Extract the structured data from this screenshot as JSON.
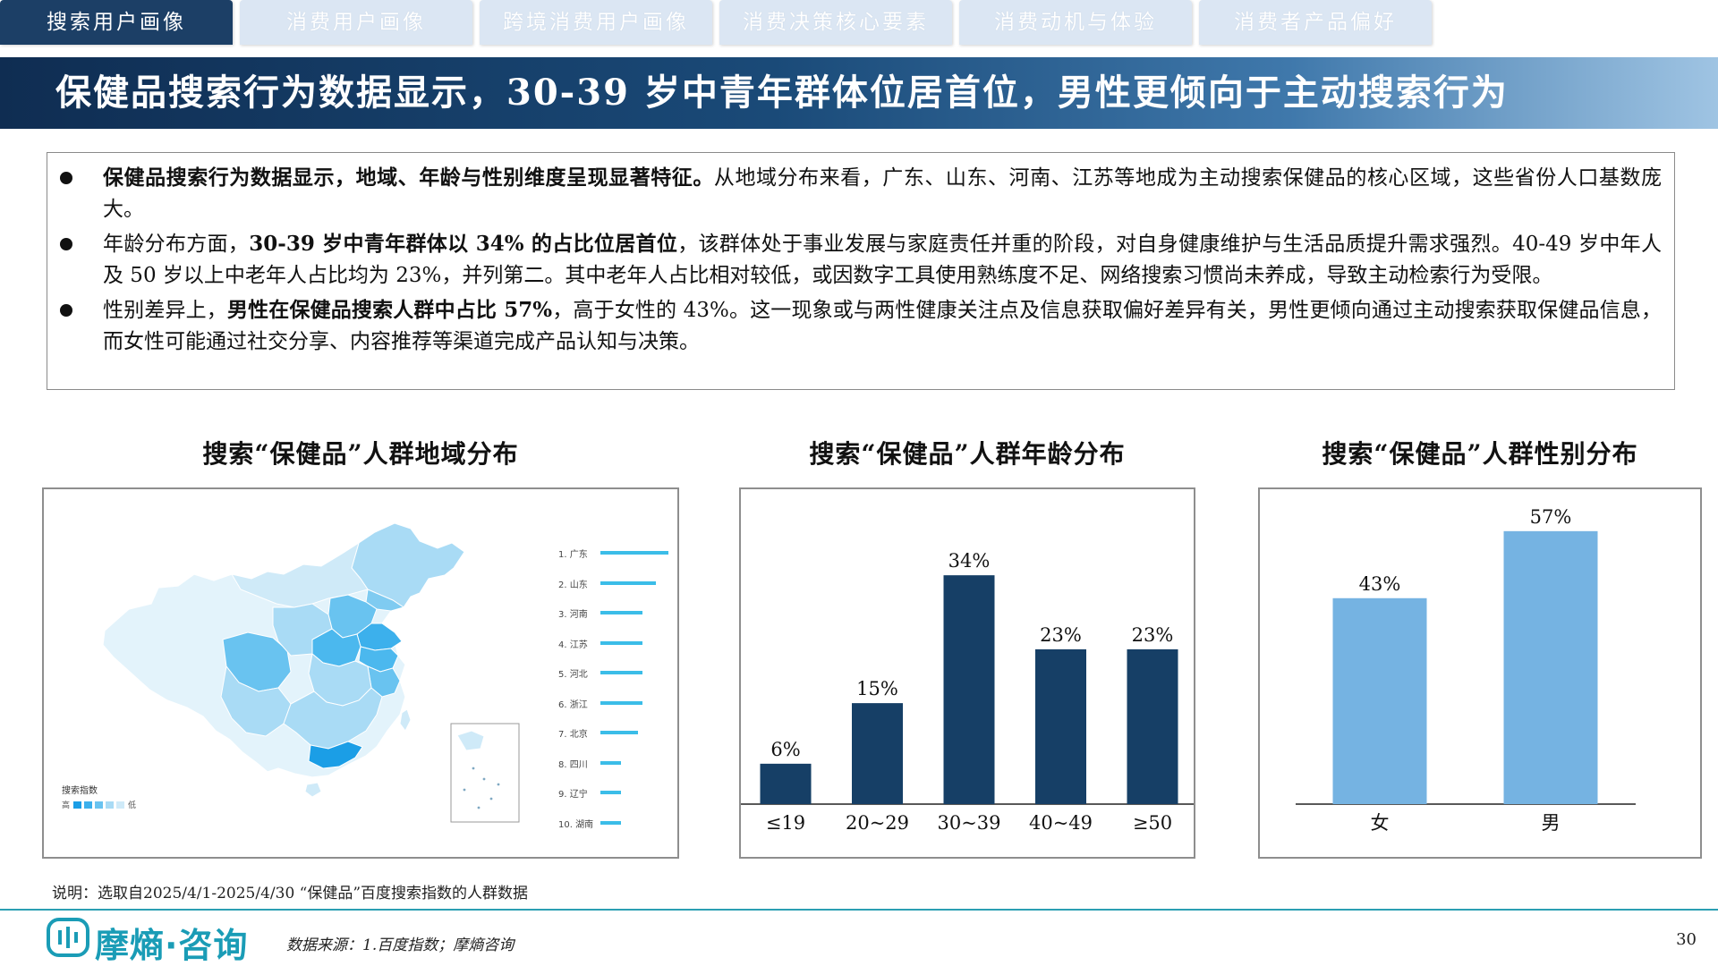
{
  "tabs": [
    {
      "label": "搜索用户画像",
      "active": true
    },
    {
      "label": "消费用户画像",
      "active": false
    },
    {
      "label": "跨境消费用户画像",
      "active": false
    },
    {
      "label": "消费决策核心要素",
      "active": false
    },
    {
      "label": "消费动机与体验",
      "active": false
    },
    {
      "label": "消费者产品偏好",
      "active": false
    }
  ],
  "title": "保健品搜索行为数据显示，30-39 岁中青年群体位居首位，男性更倾向于主动搜索行为",
  "summary": {
    "b1_bold": "保健品搜索行为数据显示，地域、年龄与性别维度呈现显著特征。",
    "b1_rest": "从地域分布来看，广东、山东、河南、江苏等地成为主动搜索保健品的核心区域，这些省份人口基数庞大。",
    "b2_pre": "年龄分布方面，",
    "b2_bold": "30-39 岁中青年群体以 34% 的占比位居首位",
    "b2_rest": "，该群体处于事业发展与家庭责任并重的阶段，对自身健康维护与生活品质提升需求强烈。40-49 岁中年人及 50 岁以上中老年人占比均为 23%，并列第二。其中老年人占比相对较低，或因数字工具使用熟练度不足、网络搜索习惯尚未养成，导致主动检索行为受限。",
    "b3_pre": "性别差异上，",
    "b3_bold": "男性在保健品搜索人群中占比 57%",
    "b3_rest": "，高于女性的 43%。这一现象或与两性健康关注点及信息获取偏好差异有关，男性更倾向通过主动搜索获取保健品信息，而女性可能通过社交分享、内容推荐等渠道完成产品认知与决策。"
  },
  "map_panel": {
    "title": "搜索“保健品”人群地域分布",
    "legend_title": "搜索指数",
    "legend_high": "高",
    "legend_low": "低",
    "ranking": [
      {
        "label": "1. 广东",
        "index": 1.0
      },
      {
        "label": "2. 山东",
        "index": 0.82
      },
      {
        "label": "3. 河南",
        "index": 0.62
      },
      {
        "label": "4. 江苏",
        "index": 0.62
      },
      {
        "label": "5. 河北",
        "index": 0.62
      },
      {
        "label": "6. 浙江",
        "index": 0.62
      },
      {
        "label": "7. 北京",
        "index": 0.55
      },
      {
        "label": "8. 四川",
        "index": 0.3
      },
      {
        "label": "9. 辽宁",
        "index": 0.3
      },
      {
        "label": "10. 湖南",
        "index": 0.3
      }
    ],
    "colors": {
      "high": "#1b9ee6",
      "mid": "#69c3f0",
      "low": "#cfeaf8",
      "land": "#e3f3fb"
    }
  },
  "chart_data": [
    {
      "type": "bar",
      "title": "搜索“保健品”人群年龄分布",
      "categories": [
        "≤19",
        "20~29",
        "30~39",
        "40~49",
        "≥50"
      ],
      "values": [
        6,
        15,
        34,
        23,
        23
      ],
      "value_labels": [
        "6%",
        "15%",
        "34%",
        "23%",
        "23%"
      ],
      "ylim": [
        0,
        40
      ],
      "color": "#163f66",
      "grid": false
    },
    {
      "type": "bar",
      "title": "搜索“保健品”人群性别分布",
      "categories": [
        "女",
        "男"
      ],
      "values": [
        43,
        57
      ],
      "value_labels": [
        "43%",
        "57%"
      ],
      "ylim": [
        0,
        65
      ],
      "color": "#75b3e2",
      "grid": false
    }
  ],
  "note": "说明：选取自2025/4/1-2025/4/30 “保健品”百度搜索指数的人群数据",
  "footer": {
    "logo": "摩熵·咨询",
    "source": "数据来源：1.百度指数；摩熵咨询",
    "page": "30"
  }
}
